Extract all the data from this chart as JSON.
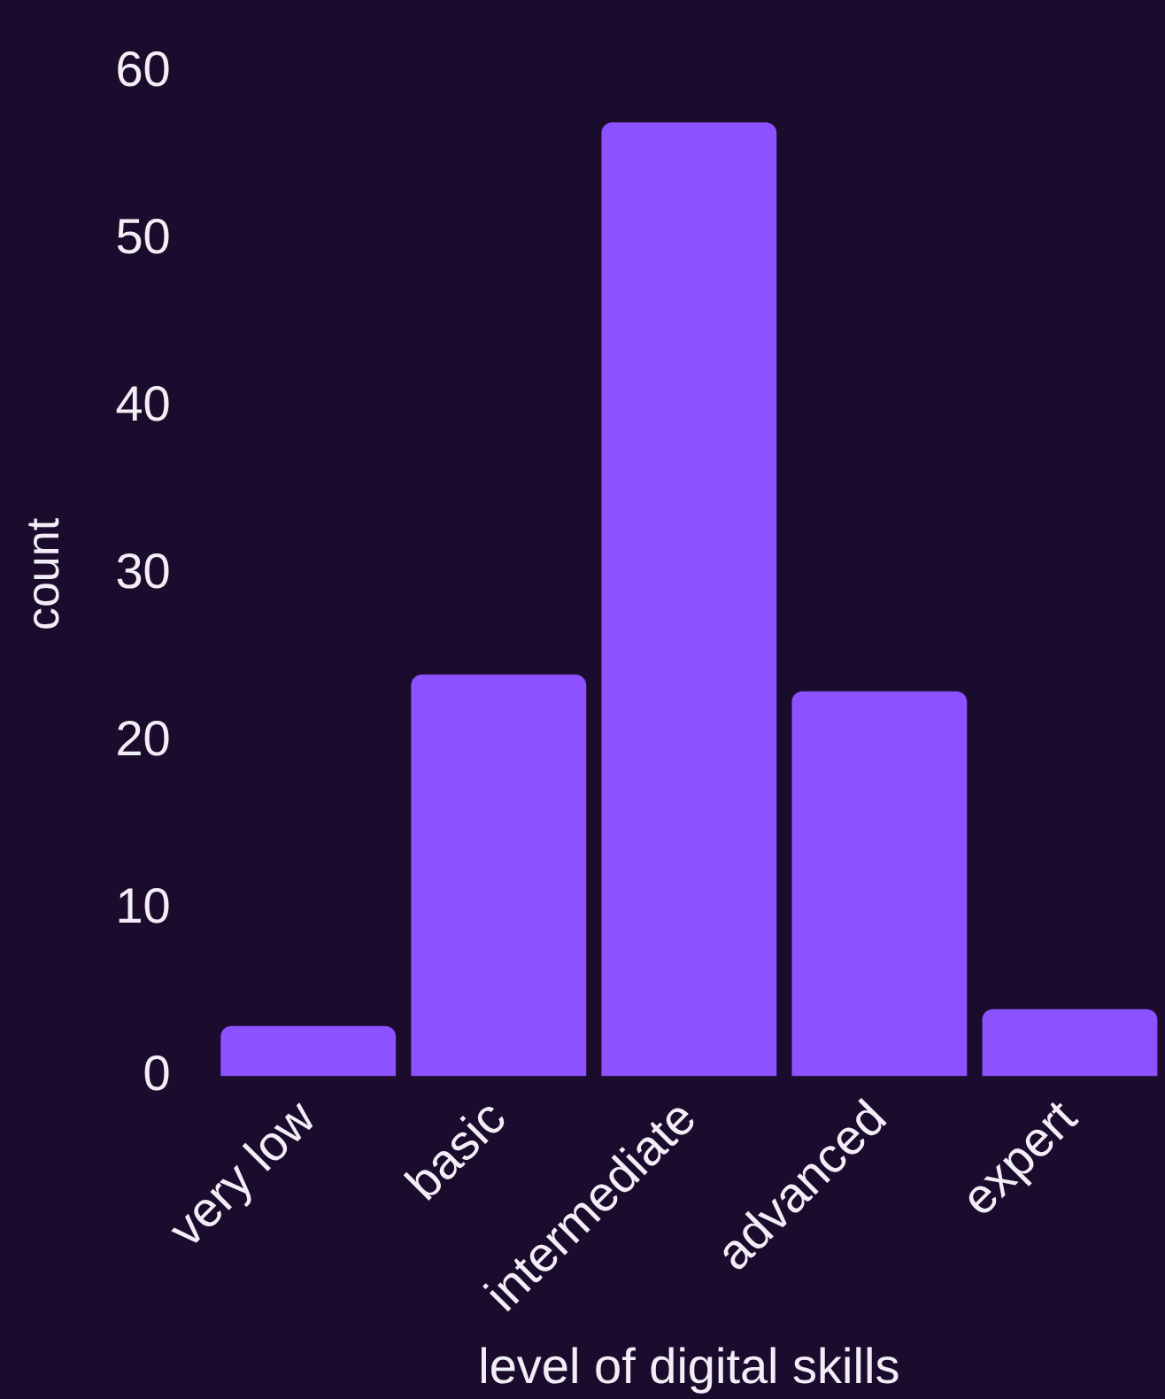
{
  "chart_data": {
    "type": "bar",
    "xlabel": "level of digital skills",
    "ylabel": "count",
    "categories": [
      "very low",
      "basic",
      "intermediate",
      "advanced",
      "expert"
    ],
    "values": [
      3,
      24,
      57,
      23,
      4
    ],
    "color": "#8c52ff",
    "ylim": [
      0,
      60
    ],
    "yticks": [
      0,
      10,
      20,
      30,
      40,
      50,
      60
    ],
    "grid": false,
    "legend": false
  }
}
